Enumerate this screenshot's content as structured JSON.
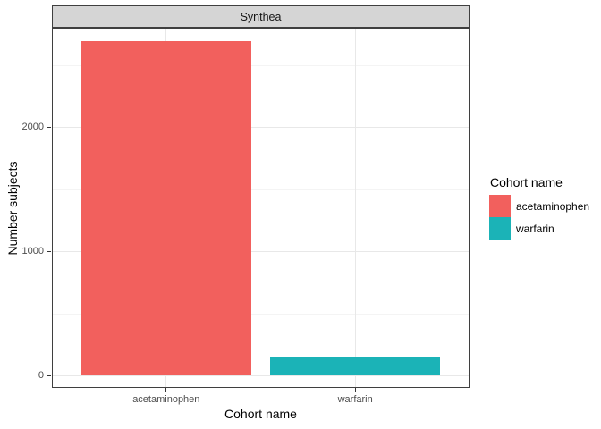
{
  "chart_data": {
    "type": "bar",
    "facet_label": "Synthea",
    "xlabel": "Cohort name",
    "ylabel": "Number subjects",
    "categories": [
      "acetaminophen",
      "warfarin"
    ],
    "values": [
      2690,
      145
    ],
    "bar_colors": [
      "#F2605D",
      "#1BB3B7"
    ],
    "yticks": [
      0,
      1000,
      2000
    ],
    "y_minor_ticks": [
      500,
      1500,
      2500
    ],
    "ylim": [
      0,
      2800
    ],
    "grid": true,
    "legend": {
      "title": "Cohort name",
      "position": "right",
      "entries": [
        {
          "label": "acetaminophen",
          "color": "#F2605D"
        },
        {
          "label": "warfarin",
          "color": "#1BB3B7"
        }
      ]
    }
  }
}
